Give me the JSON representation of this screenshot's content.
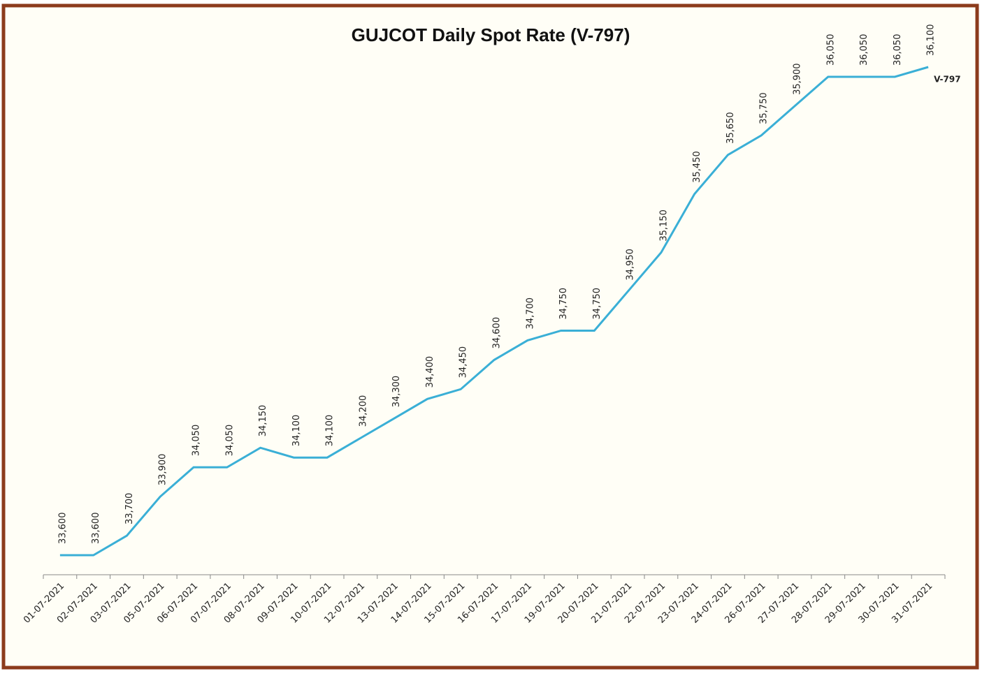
{
  "chart_data": {
    "type": "line",
    "title": "GUJCOT Daily Spot Rate (V-797)",
    "categories": [
      "01-07-2021",
      "02-07-2021",
      "03-07-2021",
      "05-07-2021",
      "06-07-2021",
      "07-07-2021",
      "08-07-2021",
      "09-07-2021",
      "10-07-2021",
      "12-07-2021",
      "13-07-2021",
      "14-07-2021",
      "15-07-2021",
      "16-07-2021",
      "17-07-2021",
      "19-07-2021",
      "20-07-2021",
      "21-07-2021",
      "22-07-2021",
      "23-07-2021",
      "24-07-2021",
      "26-07-2021",
      "27-07-2021",
      "28-07-2021",
      "29-07-2021",
      "30-07-2021",
      "31-07-2021"
    ],
    "series": [
      {
        "name": "V-797",
        "color": "#3aafd6",
        "values": [
          33600,
          33600,
          33700,
          33900,
          34050,
          34050,
          34150,
          34100,
          34100,
          34200,
          34300,
          34400,
          34450,
          34600,
          34700,
          34750,
          34750,
          34950,
          35150,
          35450,
          35650,
          35750,
          35900,
          36050,
          36050,
          36050,
          36100
        ],
        "value_labels": [
          "33,600",
          "33,600",
          "33,700",
          "33,900",
          "34,050",
          "34,050",
          "34,150",
          "34,100",
          "34,100",
          "34,200",
          "34,300",
          "34,400",
          "34,450",
          "34,600",
          "34,700",
          "34,750",
          "34,750",
          "34,950",
          "35,150",
          "35,450",
          "35,650",
          "35,750",
          "35,900",
          "36,050",
          "36,050",
          "36,050",
          "36,100"
        ]
      }
    ]
  }
}
